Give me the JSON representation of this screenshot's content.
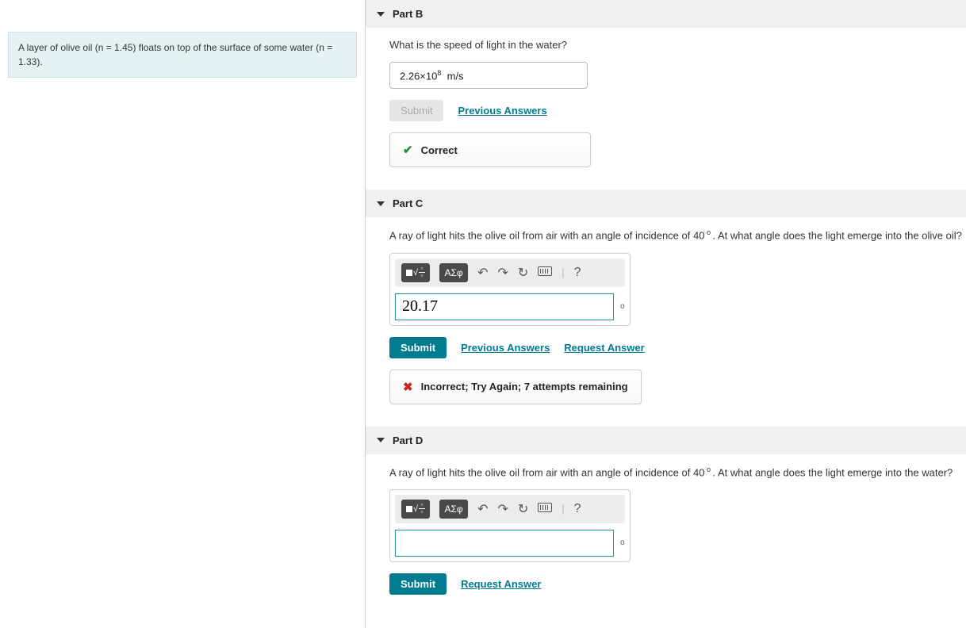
{
  "problem_statement": "A layer of olive oil (n = 1.45) floats on top of the surface of some water (n = 1.33).",
  "colors": {
    "primary": "#007c91",
    "correct": "#2a8a3e",
    "incorrect": "#c62828",
    "info_bg": "#e5f2f4"
  },
  "parts": {
    "b": {
      "title": "Part B",
      "question": "What is the speed of light in the water?",
      "answer_value": "2.26×10",
      "answer_exp": "8",
      "answer_unit": "m/s",
      "submit_label": "Submit",
      "prev_label": "Previous Answers",
      "feedback": "Correct"
    },
    "c": {
      "title": "Part C",
      "question_pre": "A ray of light hits the olive oil from air with an angle of incidence of 40",
      "question_post": ".  At what angle does the light emerge into the olive oil?",
      "input_value": "20.17",
      "unit": "o",
      "submit_label": "Submit",
      "prev_label": "Previous Answers",
      "request_label": "Request Answer",
      "feedback": "Incorrect; Try Again; 7 attempts remaining"
    },
    "d": {
      "title": "Part D",
      "question_pre": "A ray of light hits the olive oil from air with an angle of incidence of 40",
      "question_post": ".  At what angle does the light emerge into the water?",
      "input_value": "",
      "unit": "o",
      "submit_label": "Submit",
      "request_label": "Request Answer"
    }
  },
  "toolbar": {
    "templates": "▫√▫",
    "greek": "ΑΣφ",
    "undo": "↶",
    "redo": "↷",
    "reset": "↻",
    "keyboard": "kbd",
    "help": "?"
  }
}
